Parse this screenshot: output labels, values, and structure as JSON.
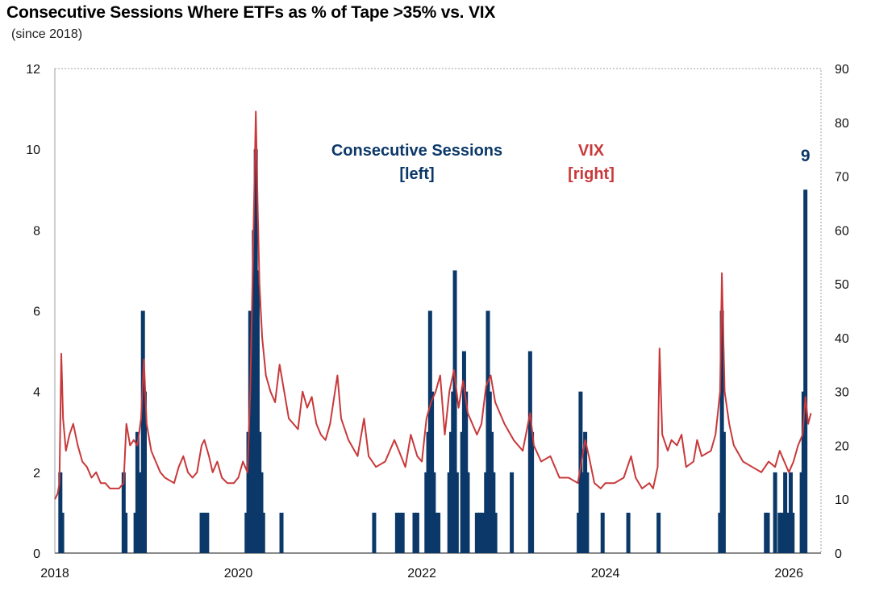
{
  "chart_data": {
    "type": "bar+line",
    "title": "Consecutive Sessions Where ETFs as % of Tape >35% vs. VIX",
    "subtitle": "(since 2018)",
    "x_range": [
      2018.0,
      2026.35
    ],
    "x_ticks": [
      2018,
      2020,
      2022,
      2024,
      2026
    ],
    "left_axis": {
      "range": [
        0,
        12
      ],
      "ticks": [
        0,
        2,
        4,
        6,
        8,
        10,
        12
      ]
    },
    "right_axis": {
      "range": [
        0,
        90
      ],
      "ticks": [
        0,
        10,
        20,
        30,
        40,
        50,
        60,
        70,
        80,
        90
      ]
    },
    "series": [
      {
        "name": "Consecutive Sessions",
        "axis": "left",
        "color": "#0b3868",
        "label_line1": "Consecutive Sessions",
        "label_line2": "[left]",
        "kind": "bar",
        "points": [
          [
            2018.06,
            2
          ],
          [
            2018.08,
            1
          ],
          [
            2018.75,
            2
          ],
          [
            2018.77,
            1
          ],
          [
            2018.88,
            1
          ],
          [
            2018.9,
            3
          ],
          [
            2018.92,
            2
          ],
          [
            2018.96,
            6
          ],
          [
            2018.98,
            4
          ],
          [
            2019.6,
            1
          ],
          [
            2019.63,
            1
          ],
          [
            2019.66,
            1
          ],
          [
            2020.09,
            1
          ],
          [
            2020.11,
            3
          ],
          [
            2020.13,
            6
          ],
          [
            2020.17,
            8
          ],
          [
            2020.19,
            10
          ],
          [
            2020.21,
            7
          ],
          [
            2020.23,
            3
          ],
          [
            2020.25,
            2
          ],
          [
            2020.27,
            1
          ],
          [
            2020.47,
            1
          ],
          [
            2021.48,
            1
          ],
          [
            2021.73,
            1
          ],
          [
            2021.76,
            1
          ],
          [
            2021.79,
            1
          ],
          [
            2021.92,
            1
          ],
          [
            2021.95,
            1
          ],
          [
            2022.05,
            2
          ],
          [
            2022.07,
            3
          ],
          [
            2022.09,
            6
          ],
          [
            2022.11,
            4
          ],
          [
            2022.13,
            2
          ],
          [
            2022.16,
            1
          ],
          [
            2022.18,
            1
          ],
          [
            2022.3,
            2
          ],
          [
            2022.32,
            3
          ],
          [
            2022.34,
            4
          ],
          [
            2022.36,
            7
          ],
          [
            2022.38,
            2
          ],
          [
            2022.44,
            3
          ],
          [
            2022.46,
            5
          ],
          [
            2022.48,
            4
          ],
          [
            2022.5,
            2
          ],
          [
            2022.6,
            1
          ],
          [
            2022.62,
            1
          ],
          [
            2022.64,
            1
          ],
          [
            2022.66,
            1
          ],
          [
            2022.7,
            2
          ],
          [
            2022.72,
            6
          ],
          [
            2022.74,
            4
          ],
          [
            2022.76,
            3
          ],
          [
            2022.78,
            2
          ],
          [
            2022.8,
            1
          ],
          [
            2022.98,
            2
          ],
          [
            2023.18,
            5
          ],
          [
            2023.2,
            3
          ],
          [
            2023.71,
            1
          ],
          [
            2023.73,
            4
          ],
          [
            2023.75,
            2
          ],
          [
            2023.78,
            3
          ],
          [
            2023.8,
            2
          ],
          [
            2023.97,
            1
          ],
          [
            2024.25,
            1
          ],
          [
            2024.58,
            1
          ],
          [
            2025.25,
            1
          ],
          [
            2025.27,
            6
          ],
          [
            2025.29,
            3
          ],
          [
            2025.75,
            1
          ],
          [
            2025.77,
            1
          ],
          [
            2025.85,
            2
          ],
          [
            2025.9,
            1
          ],
          [
            2025.92,
            1
          ],
          [
            2025.96,
            2
          ],
          [
            2025.98,
            1
          ],
          [
            2026.02,
            2
          ],
          [
            2026.04,
            1
          ],
          [
            2026.14,
            2
          ],
          [
            2026.16,
            4
          ],
          [
            2026.18,
            9
          ]
        ]
      },
      {
        "name": "VIX",
        "axis": "right",
        "color": "#c8393b",
        "label_line1": "VIX",
        "label_line2": "[right]",
        "kind": "line",
        "points": [
          [
            2018.0,
            10
          ],
          [
            2018.03,
            11
          ],
          [
            2018.05,
            13
          ],
          [
            2018.07,
            37
          ],
          [
            2018.09,
            25
          ],
          [
            2018.12,
            19
          ],
          [
            2018.16,
            22
          ],
          [
            2018.2,
            24
          ],
          [
            2018.25,
            20
          ],
          [
            2018.3,
            17
          ],
          [
            2018.35,
            16
          ],
          [
            2018.4,
            14
          ],
          [
            2018.45,
            15
          ],
          [
            2018.5,
            13
          ],
          [
            2018.55,
            13
          ],
          [
            2018.6,
            12
          ],
          [
            2018.65,
            12
          ],
          [
            2018.7,
            12
          ],
          [
            2018.75,
            13
          ],
          [
            2018.78,
            24
          ],
          [
            2018.82,
            20
          ],
          [
            2018.86,
            21
          ],
          [
            2018.9,
            20
          ],
          [
            2018.94,
            25
          ],
          [
            2018.97,
            36
          ],
          [
            2019.0,
            24
          ],
          [
            2019.05,
            19
          ],
          [
            2019.1,
            17
          ],
          [
            2019.15,
            15
          ],
          [
            2019.2,
            14
          ],
          [
            2019.3,
            13
          ],
          [
            2019.35,
            16
          ],
          [
            2019.4,
            18
          ],
          [
            2019.45,
            15
          ],
          [
            2019.5,
            14
          ],
          [
            2019.55,
            15
          ],
          [
            2019.6,
            20
          ],
          [
            2019.63,
            21
          ],
          [
            2019.68,
            18
          ],
          [
            2019.72,
            15
          ],
          [
            2019.77,
            17
          ],
          [
            2019.82,
            14
          ],
          [
            2019.88,
            13
          ],
          [
            2019.95,
            13
          ],
          [
            2020.0,
            14
          ],
          [
            2020.05,
            17
          ],
          [
            2020.1,
            15
          ],
          [
            2020.13,
            30
          ],
          [
            2020.16,
            55
          ],
          [
            2020.19,
            82
          ],
          [
            2020.21,
            65
          ],
          [
            2020.23,
            50
          ],
          [
            2020.26,
            40
          ],
          [
            2020.3,
            33
          ],
          [
            2020.35,
            30
          ],
          [
            2020.4,
            28
          ],
          [
            2020.45,
            35
          ],
          [
            2020.5,
            30
          ],
          [
            2020.55,
            25
          ],
          [
            2020.6,
            24
          ],
          [
            2020.65,
            23
          ],
          [
            2020.7,
            30
          ],
          [
            2020.75,
            27
          ],
          [
            2020.8,
            29
          ],
          [
            2020.85,
            24
          ],
          [
            2020.9,
            22
          ],
          [
            2020.95,
            21
          ],
          [
            2021.0,
            24
          ],
          [
            2021.08,
            33
          ],
          [
            2021.12,
            25
          ],
          [
            2021.2,
            21
          ],
          [
            2021.3,
            18
          ],
          [
            2021.37,
            25
          ],
          [
            2021.42,
            18
          ],
          [
            2021.5,
            16
          ],
          [
            2021.6,
            17
          ],
          [
            2021.7,
            21
          ],
          [
            2021.75,
            19
          ],
          [
            2021.82,
            16
          ],
          [
            2021.88,
            22
          ],
          [
            2021.95,
            18
          ],
          [
            2022.0,
            17
          ],
          [
            2022.05,
            25
          ],
          [
            2022.1,
            28
          ],
          [
            2022.15,
            30
          ],
          [
            2022.2,
            33
          ],
          [
            2022.25,
            22
          ],
          [
            2022.3,
            30
          ],
          [
            2022.35,
            34
          ],
          [
            2022.4,
            27
          ],
          [
            2022.45,
            32
          ],
          [
            2022.5,
            26
          ],
          [
            2022.55,
            24
          ],
          [
            2022.6,
            22
          ],
          [
            2022.65,
            24
          ],
          [
            2022.7,
            31
          ],
          [
            2022.75,
            33
          ],
          [
            2022.8,
            28
          ],
          [
            2022.85,
            26
          ],
          [
            2022.9,
            24
          ],
          [
            2023.0,
            21
          ],
          [
            2023.1,
            19
          ],
          [
            2023.18,
            26
          ],
          [
            2023.22,
            20
          ],
          [
            2023.3,
            17
          ],
          [
            2023.4,
            18
          ],
          [
            2023.5,
            14
          ],
          [
            2023.6,
            14
          ],
          [
            2023.7,
            13
          ],
          [
            2023.74,
            17
          ],
          [
            2023.78,
            21
          ],
          [
            2023.82,
            18
          ],
          [
            2023.88,
            13
          ],
          [
            2023.95,
            12
          ],
          [
            2024.0,
            13
          ],
          [
            2024.1,
            13
          ],
          [
            2024.2,
            14
          ],
          [
            2024.28,
            18
          ],
          [
            2024.33,
            14
          ],
          [
            2024.4,
            12
          ],
          [
            2024.48,
            13
          ],
          [
            2024.52,
            12
          ],
          [
            2024.57,
            16
          ],
          [
            2024.59,
            38
          ],
          [
            2024.62,
            22
          ],
          [
            2024.68,
            19
          ],
          [
            2024.72,
            21
          ],
          [
            2024.78,
            20
          ],
          [
            2024.83,
            22
          ],
          [
            2024.88,
            16
          ],
          [
            2024.96,
            17
          ],
          [
            2025.0,
            21
          ],
          [
            2025.05,
            18
          ],
          [
            2025.15,
            19
          ],
          [
            2025.2,
            22
          ],
          [
            2025.25,
            30
          ],
          [
            2025.27,
            52
          ],
          [
            2025.3,
            30
          ],
          [
            2025.35,
            24
          ],
          [
            2025.4,
            20
          ],
          [
            2025.5,
            17
          ],
          [
            2025.6,
            16
          ],
          [
            2025.7,
            15
          ],
          [
            2025.78,
            17
          ],
          [
            2025.85,
            16
          ],
          [
            2025.9,
            19
          ],
          [
            2025.95,
            17
          ],
          [
            2026.0,
            15
          ],
          [
            2026.05,
            17
          ],
          [
            2026.1,
            20
          ],
          [
            2026.15,
            22
          ],
          [
            2026.18,
            29
          ],
          [
            2026.21,
            24
          ],
          [
            2026.24,
            26
          ]
        ]
      }
    ],
    "annotations": [
      {
        "text": "9",
        "x": 2026.18,
        "y": 9.7,
        "axis": "left",
        "color": "#0b3868"
      }
    ]
  }
}
